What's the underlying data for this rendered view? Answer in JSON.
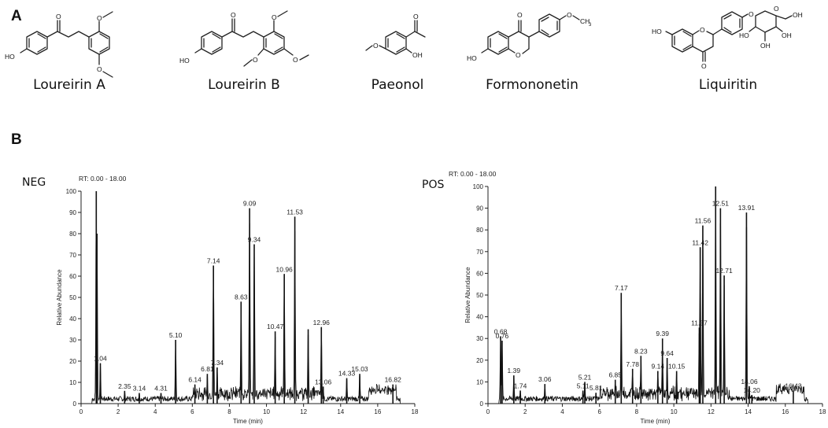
{
  "panel_a": {
    "letter": "A",
    "compounds": [
      "Loureirin A",
      "Loureirin B",
      "Paeonol",
      "Formononetin",
      "Liquiritin"
    ]
  },
  "panel_b": {
    "letter": "B"
  },
  "chart_data": [
    {
      "type": "line",
      "mode_label": "NEG",
      "rt_label": "RT: 0.00 - 18.00",
      "xlabel": "Time (min)",
      "ylabel": "Relative Abundance",
      "xlim": [
        0,
        18
      ],
      "ylim": [
        0,
        100
      ],
      "x_ticks": [
        0,
        2,
        4,
        6,
        8,
        10,
        12,
        14,
        16,
        18
      ],
      "y_ticks": [
        0,
        10,
        20,
        30,
        40,
        50,
        60,
        70,
        80,
        90,
        100
      ],
      "peaks": [
        {
          "rt": 0.82,
          "y": 100,
          "label": ""
        },
        {
          "rt": 0.86,
          "y": 80,
          "label": ""
        },
        {
          "rt": 1.04,
          "y": 19,
          "label": "1.04"
        },
        {
          "rt": 2.35,
          "y": 6,
          "label": "2.35"
        },
        {
          "rt": 3.14,
          "y": 5,
          "label": "3.14"
        },
        {
          "rt": 4.31,
          "y": 5,
          "label": "4.31"
        },
        {
          "rt": 5.1,
          "y": 30,
          "label": "5.10"
        },
        {
          "rt": 6.14,
          "y": 9,
          "label": "6.14"
        },
        {
          "rt": 6.81,
          "y": 14,
          "label": "6.81"
        },
        {
          "rt": 7.14,
          "y": 65,
          "label": "7.14"
        },
        {
          "rt": 7.34,
          "y": 17,
          "label": "7.34"
        },
        {
          "rt": 8.63,
          "y": 48,
          "label": "8.63"
        },
        {
          "rt": 9.09,
          "y": 92,
          "label": "9.09"
        },
        {
          "rt": 9.34,
          "y": 75,
          "label": "9.34"
        },
        {
          "rt": 10.47,
          "y": 34,
          "label": "10.47"
        },
        {
          "rt": 10.96,
          "y": 61,
          "label": "10.96"
        },
        {
          "rt": 11.53,
          "y": 88,
          "label": "11.53"
        },
        {
          "rt": 12.25,
          "y": 35,
          "label": ""
        },
        {
          "rt": 12.96,
          "y": 36,
          "label": "12.96"
        },
        {
          "rt": 13.06,
          "y": 8,
          "label": "13.06"
        },
        {
          "rt": 14.33,
          "y": 12,
          "label": "14.33"
        },
        {
          "rt": 15.03,
          "y": 14,
          "label": "15.03"
        },
        {
          "rt": 16.82,
          "y": 9,
          "label": "16.82"
        }
      ]
    },
    {
      "type": "line",
      "mode_label": "POS",
      "rt_label": "RT: 0.00 - 18.00",
      "xlabel": "Time (min)",
      "ylabel": "Relative Abundance",
      "xlim": [
        0,
        18
      ],
      "ylim": [
        0,
        100
      ],
      "x_ticks": [
        0,
        2,
        4,
        6,
        8,
        10,
        12,
        14,
        16,
        18
      ],
      "y_ticks": [
        0,
        10,
        20,
        30,
        40,
        50,
        60,
        70,
        80,
        90,
        100
      ],
      "peaks": [
        {
          "rt": 0.68,
          "y": 31,
          "label": "0.68"
        },
        {
          "rt": 0.76,
          "y": 29,
          "label": "0.76"
        },
        {
          "rt": 1.39,
          "y": 13,
          "label": "1.39"
        },
        {
          "rt": 1.74,
          "y": 6,
          "label": "1.74"
        },
        {
          "rt": 3.06,
          "y": 9,
          "label": "3.06"
        },
        {
          "rt": 5.11,
          "y": 6,
          "label": "5.11"
        },
        {
          "rt": 5.21,
          "y": 10,
          "label": "5.21"
        },
        {
          "rt": 5.81,
          "y": 5,
          "label": "5.81"
        },
        {
          "rt": 6.85,
          "y": 11,
          "label": "6.85"
        },
        {
          "rt": 7.17,
          "y": 51,
          "label": "7.17"
        },
        {
          "rt": 7.78,
          "y": 16,
          "label": "7.78"
        },
        {
          "rt": 8.23,
          "y": 22,
          "label": "8.23"
        },
        {
          "rt": 9.14,
          "y": 15,
          "label": "9.14"
        },
        {
          "rt": 9.39,
          "y": 30,
          "label": "9.39"
        },
        {
          "rt": 9.64,
          "y": 21,
          "label": "9.64"
        },
        {
          "rt": 10.15,
          "y": 15,
          "label": "10.15"
        },
        {
          "rt": 11.37,
          "y": 35,
          "label": "11.37"
        },
        {
          "rt": 11.42,
          "y": 72,
          "label": "11.42"
        },
        {
          "rt": 11.56,
          "y": 82,
          "label": "11.56"
        },
        {
          "rt": 12.25,
          "y": 100,
          "label": ""
        },
        {
          "rt": 12.51,
          "y": 90,
          "label": "12.51"
        },
        {
          "rt": 12.71,
          "y": 59,
          "label": "12.71"
        },
        {
          "rt": 13.91,
          "y": 88,
          "label": "13.91"
        },
        {
          "rt": 14.06,
          "y": 8,
          "label": "14.06"
        },
        {
          "rt": 14.2,
          "y": 4,
          "label": "14.20"
        },
        {
          "rt": 16.43,
          "y": 6,
          "label": "16.43"
        }
      ]
    }
  ]
}
